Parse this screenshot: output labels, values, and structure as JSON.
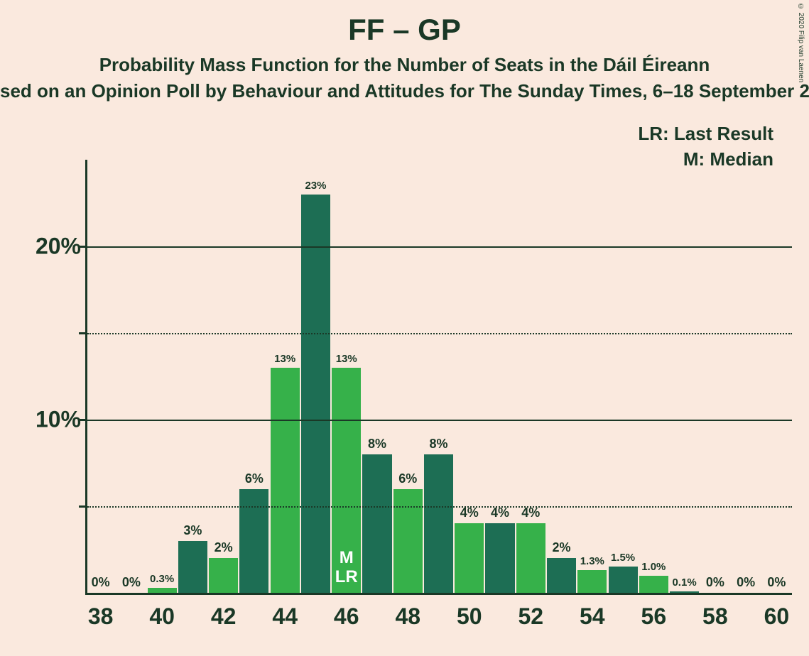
{
  "copyright": "© 2020 Filip van Laenen",
  "titles": {
    "main": "FF – GP",
    "sub1": "Probability Mass Function for the Number of Seats in the Dáil Éireann",
    "sub2": "sed on an Opinion Poll by Behaviour and Attitudes for The Sunday Times, 6–18 September 20"
  },
  "legend": {
    "lr": "LR: Last Result",
    "m": "M: Median"
  },
  "chart": {
    "type": "bar",
    "background_color": "#fae9de",
    "axis_color": "#1a3826",
    "text_color": "#1a3826",
    "colors": {
      "dark": "#1d6e54",
      "light": "#36b14a"
    },
    "ylim": [
      0,
      25
    ],
    "y_major": [
      10,
      20
    ],
    "y_minor": [
      5,
      15
    ],
    "y_labels": {
      "10": "10%",
      "20": "20%"
    },
    "x_start": 38,
    "x_end": 60,
    "x_tick_step": 2,
    "bar_width_ratio": 0.95,
    "title_fontsize": 42,
    "subtitle_fontsize": 26,
    "axis_label_fontsize": 32,
    "barlabel_fontsize_large": 18,
    "barlabel_fontsize_small": 15,
    "bars": [
      {
        "x": 38,
        "value": 0,
        "label": "0%",
        "annotation": ""
      },
      {
        "x": 39,
        "value": 0,
        "label": "0%",
        "annotation": ""
      },
      {
        "x": 40,
        "value": 0.3,
        "label": "0.3%",
        "annotation": ""
      },
      {
        "x": 41,
        "value": 3,
        "label": "3%",
        "annotation": ""
      },
      {
        "x": 42,
        "value": 2,
        "label": "2%",
        "annotation": ""
      },
      {
        "x": 43,
        "value": 6,
        "label": "6%",
        "annotation": ""
      },
      {
        "x": 44,
        "value": 13,
        "label": "13%",
        "annotation": ""
      },
      {
        "x": 45,
        "value": 23,
        "label": "23%",
        "annotation": ""
      },
      {
        "x": 46,
        "value": 13,
        "label": "13%",
        "annotation": "M\nLR"
      },
      {
        "x": 47,
        "value": 8,
        "label": "8%",
        "annotation": ""
      },
      {
        "x": 48,
        "value": 6,
        "label": "6%",
        "annotation": ""
      },
      {
        "x": 49,
        "value": 8,
        "label": "8%",
        "annotation": ""
      },
      {
        "x": 50,
        "value": 4,
        "label": "4%",
        "annotation": ""
      },
      {
        "x": 51,
        "value": 4,
        "label": "4%",
        "annotation": ""
      },
      {
        "x": 52,
        "value": 4,
        "label": "4%",
        "annotation": ""
      },
      {
        "x": 53,
        "value": 2,
        "label": "2%",
        "annotation": ""
      },
      {
        "x": 54,
        "value": 1.3,
        "label": "1.3%",
        "annotation": ""
      },
      {
        "x": 55,
        "value": 1.5,
        "label": "1.5%",
        "annotation": ""
      },
      {
        "x": 56,
        "value": 1.0,
        "label": "1.0%",
        "annotation": ""
      },
      {
        "x": 57,
        "value": 0.1,
        "label": "0.1%",
        "annotation": ""
      },
      {
        "x": 58,
        "value": 0,
        "label": "0%",
        "annotation": ""
      },
      {
        "x": 59,
        "value": 0,
        "label": "0%",
        "annotation": ""
      },
      {
        "x": 60,
        "value": 0,
        "label": "0%",
        "annotation": ""
      }
    ]
  }
}
